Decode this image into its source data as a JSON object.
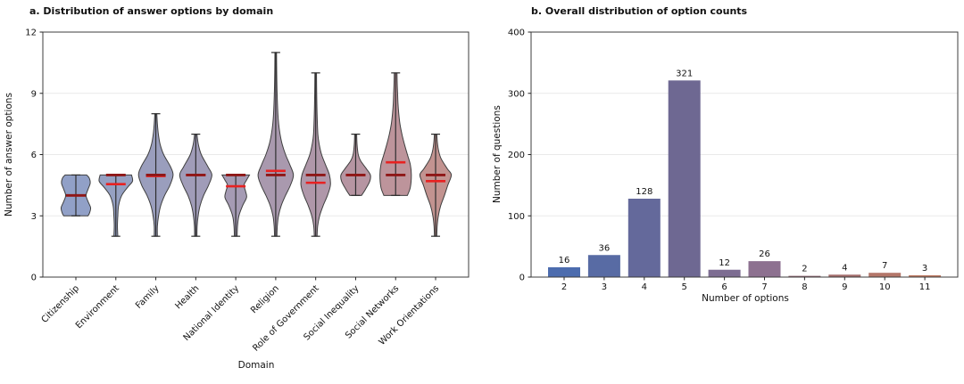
{
  "figure": {
    "background": "#ffffff",
    "spine_color": "#3c3c3c",
    "grid_color": "#eaeaea",
    "tick_color": "#262626",
    "text_color": "#111111"
  },
  "chart_data": [
    {
      "type": "violin",
      "title": "a. Distribution of answer options by domain",
      "xlabel": "Domain",
      "ylabel": "Number of answer options",
      "ylim": [
        0,
        12
      ],
      "yticks": [
        0,
        3,
        6,
        9,
        12
      ],
      "grid": true,
      "legend_position": "none",
      "mean_color": "#e82121",
      "median_color": "#8f1717",
      "whisker_color": "#2e2e2e",
      "edge_color": "#3f3f3f",
      "categories": [
        "Citizenship",
        "Environment",
        "Family",
        "Health",
        "National Identity",
        "Religion",
        "Role of Government",
        "Social Inequality",
        "Social Networks",
        "Work Orientations"
      ],
      "series": [
        {
          "name": "Citizenship",
          "min": 3,
          "max": 5,
          "median": 4,
          "mean": 4.0,
          "fill": "#91a0c7",
          "profile": [
            [
              3.0,
              0.62
            ],
            [
              3.15,
              0.7
            ],
            [
              3.4,
              0.75
            ],
            [
              3.7,
              0.62
            ],
            [
              4.0,
              0.52
            ],
            [
              4.3,
              0.62
            ],
            [
              4.6,
              0.73
            ],
            [
              4.85,
              0.68
            ],
            [
              5.0,
              0.55
            ]
          ]
        },
        {
          "name": "Environment",
          "min": 2,
          "max": 5,
          "median": 5,
          "mean": 4.55,
          "fill": "#95a0c2",
          "profile": [
            [
              2.0,
              0.1
            ],
            [
              2.5,
              0.08
            ],
            [
              3.0,
              0.1
            ],
            [
              3.5,
              0.14
            ],
            [
              4.0,
              0.3
            ],
            [
              4.4,
              0.6
            ],
            [
              4.7,
              0.85
            ],
            [
              5.0,
              0.8
            ]
          ]
        },
        {
          "name": "Family",
          "min": 2,
          "max": 8,
          "median": 5,
          "mean": 4.95,
          "fill": "#9a9ebd",
          "profile": [
            [
              2.0,
              0.08
            ],
            [
              2.5,
              0.08
            ],
            [
              3.0,
              0.14
            ],
            [
              3.5,
              0.25
            ],
            [
              4.0,
              0.45
            ],
            [
              4.5,
              0.72
            ],
            [
              5.0,
              0.88
            ],
            [
              5.4,
              0.75
            ],
            [
              6.0,
              0.4
            ],
            [
              6.5,
              0.22
            ],
            [
              7.0,
              0.13
            ],
            [
              7.5,
              0.08
            ],
            [
              8.0,
              0.05
            ]
          ]
        },
        {
          "name": "Health",
          "min": 2,
          "max": 7,
          "median": 5,
          "mean": 5.0,
          "fill": "#a09cb8",
          "profile": [
            [
              2.0,
              0.06
            ],
            [
              2.5,
              0.07
            ],
            [
              3.0,
              0.12
            ],
            [
              3.5,
              0.22
            ],
            [
              4.0,
              0.4
            ],
            [
              4.5,
              0.65
            ],
            [
              5.0,
              0.82
            ],
            [
              5.4,
              0.62
            ],
            [
              6.0,
              0.28
            ],
            [
              6.5,
              0.13
            ],
            [
              7.0,
              0.06
            ]
          ]
        },
        {
          "name": "National Identity",
          "min": 2,
          "max": 5,
          "median": 5,
          "mean": 4.45,
          "fill": "#a59bb4",
          "profile": [
            [
              2.0,
              0.07
            ],
            [
              2.5,
              0.09
            ],
            [
              3.0,
              0.16
            ],
            [
              3.5,
              0.35
            ],
            [
              3.9,
              0.55
            ],
            [
              4.2,
              0.5
            ],
            [
              4.5,
              0.42
            ],
            [
              4.75,
              0.55
            ],
            [
              5.0,
              0.7
            ]
          ]
        },
        {
          "name": "Religion",
          "min": 2,
          "max": 11,
          "median": 5,
          "mean": 5.2,
          "fill": "#a999ae",
          "profile": [
            [
              2.0,
              0.06
            ],
            [
              2.5,
              0.08
            ],
            [
              3.0,
              0.14
            ],
            [
              3.5,
              0.28
            ],
            [
              4.0,
              0.5
            ],
            [
              4.5,
              0.75
            ],
            [
              5.0,
              0.9
            ],
            [
              5.5,
              0.72
            ],
            [
              6.0,
              0.5
            ],
            [
              6.5,
              0.33
            ],
            [
              7.0,
              0.22
            ],
            [
              7.5,
              0.15
            ],
            [
              8.0,
              0.11
            ],
            [
              9.0,
              0.07
            ],
            [
              10.0,
              0.05
            ],
            [
              11.0,
              0.04
            ]
          ]
        },
        {
          "name": "Role of Government",
          "min": 2,
          "max": 10,
          "median": 5,
          "mean": 4.62,
          "fill": "#af97a9",
          "profile": [
            [
              2.0,
              0.07
            ],
            [
              2.5,
              0.1
            ],
            [
              3.0,
              0.2
            ],
            [
              3.5,
              0.38
            ],
            [
              4.0,
              0.6
            ],
            [
              4.5,
              0.75
            ],
            [
              5.0,
              0.7
            ],
            [
              5.5,
              0.5
            ],
            [
              6.0,
              0.3
            ],
            [
              6.5,
              0.18
            ],
            [
              7.0,
              0.11
            ],
            [
              8.0,
              0.07
            ],
            [
              9.0,
              0.05
            ],
            [
              10.0,
              0.04
            ]
          ]
        },
        {
          "name": "Social Inequality",
          "min": 4,
          "max": 7,
          "median": 5,
          "mean": 5.0,
          "fill": "#b695a2",
          "profile": [
            [
              4.0,
              0.3
            ],
            [
              4.3,
              0.5
            ],
            [
              4.7,
              0.72
            ],
            [
              5.0,
              0.75
            ],
            [
              5.3,
              0.55
            ],
            [
              5.7,
              0.25
            ],
            [
              6.0,
              0.13
            ],
            [
              6.5,
              0.07
            ],
            [
              7.0,
              0.05
            ]
          ]
        },
        {
          "name": "Social Networks",
          "min": 4,
          "max": 10,
          "median": 5,
          "mean": 5.62,
          "fill": "#bd949b",
          "profile": [
            [
              4.0,
              0.6
            ],
            [
              4.4,
              0.75
            ],
            [
              5.0,
              0.8
            ],
            [
              5.5,
              0.75
            ],
            [
              6.0,
              0.6
            ],
            [
              6.5,
              0.45
            ],
            [
              7.0,
              0.32
            ],
            [
              7.5,
              0.22
            ],
            [
              8.0,
              0.16
            ],
            [
              8.5,
              0.12
            ],
            [
              9.0,
              0.1
            ],
            [
              9.5,
              0.08
            ],
            [
              10.0,
              0.07
            ]
          ]
        },
        {
          "name": "Work Orientations",
          "min": 2,
          "max": 7,
          "median": 5,
          "mean": 4.7,
          "fill": "#c29390",
          "profile": [
            [
              2.0,
              0.06
            ],
            [
              2.5,
              0.08
            ],
            [
              3.0,
              0.14
            ],
            [
              3.5,
              0.26
            ],
            [
              4.0,
              0.45
            ],
            [
              4.5,
              0.62
            ],
            [
              5.0,
              0.8
            ],
            [
              5.3,
              0.6
            ],
            [
              5.8,
              0.28
            ],
            [
              6.2,
              0.15
            ],
            [
              6.6,
              0.09
            ],
            [
              7.0,
              0.06
            ]
          ]
        }
      ]
    },
    {
      "type": "bar",
      "title": "b. Overall distribution of option counts",
      "xlabel": "Number of options",
      "ylabel": "Number of questions",
      "ylim": [
        0,
        400
      ],
      "yticks": [
        0,
        100,
        200,
        300,
        400
      ],
      "grid": true,
      "legend_position": "none",
      "categories": [
        "2",
        "3",
        "4",
        "5",
        "6",
        "7",
        "8",
        "9",
        "10",
        "11"
      ],
      "values": [
        16,
        36,
        128,
        321,
        12,
        26,
        2,
        4,
        7,
        3
      ],
      "bar_colors": [
        "#4c6cae",
        "#586ba4",
        "#64699b",
        "#6e6892",
        "#7d6d92",
        "#8d7190",
        "#8c6570",
        "#a56f6e",
        "#b4776a",
        "#bd7a63"
      ]
    }
  ]
}
